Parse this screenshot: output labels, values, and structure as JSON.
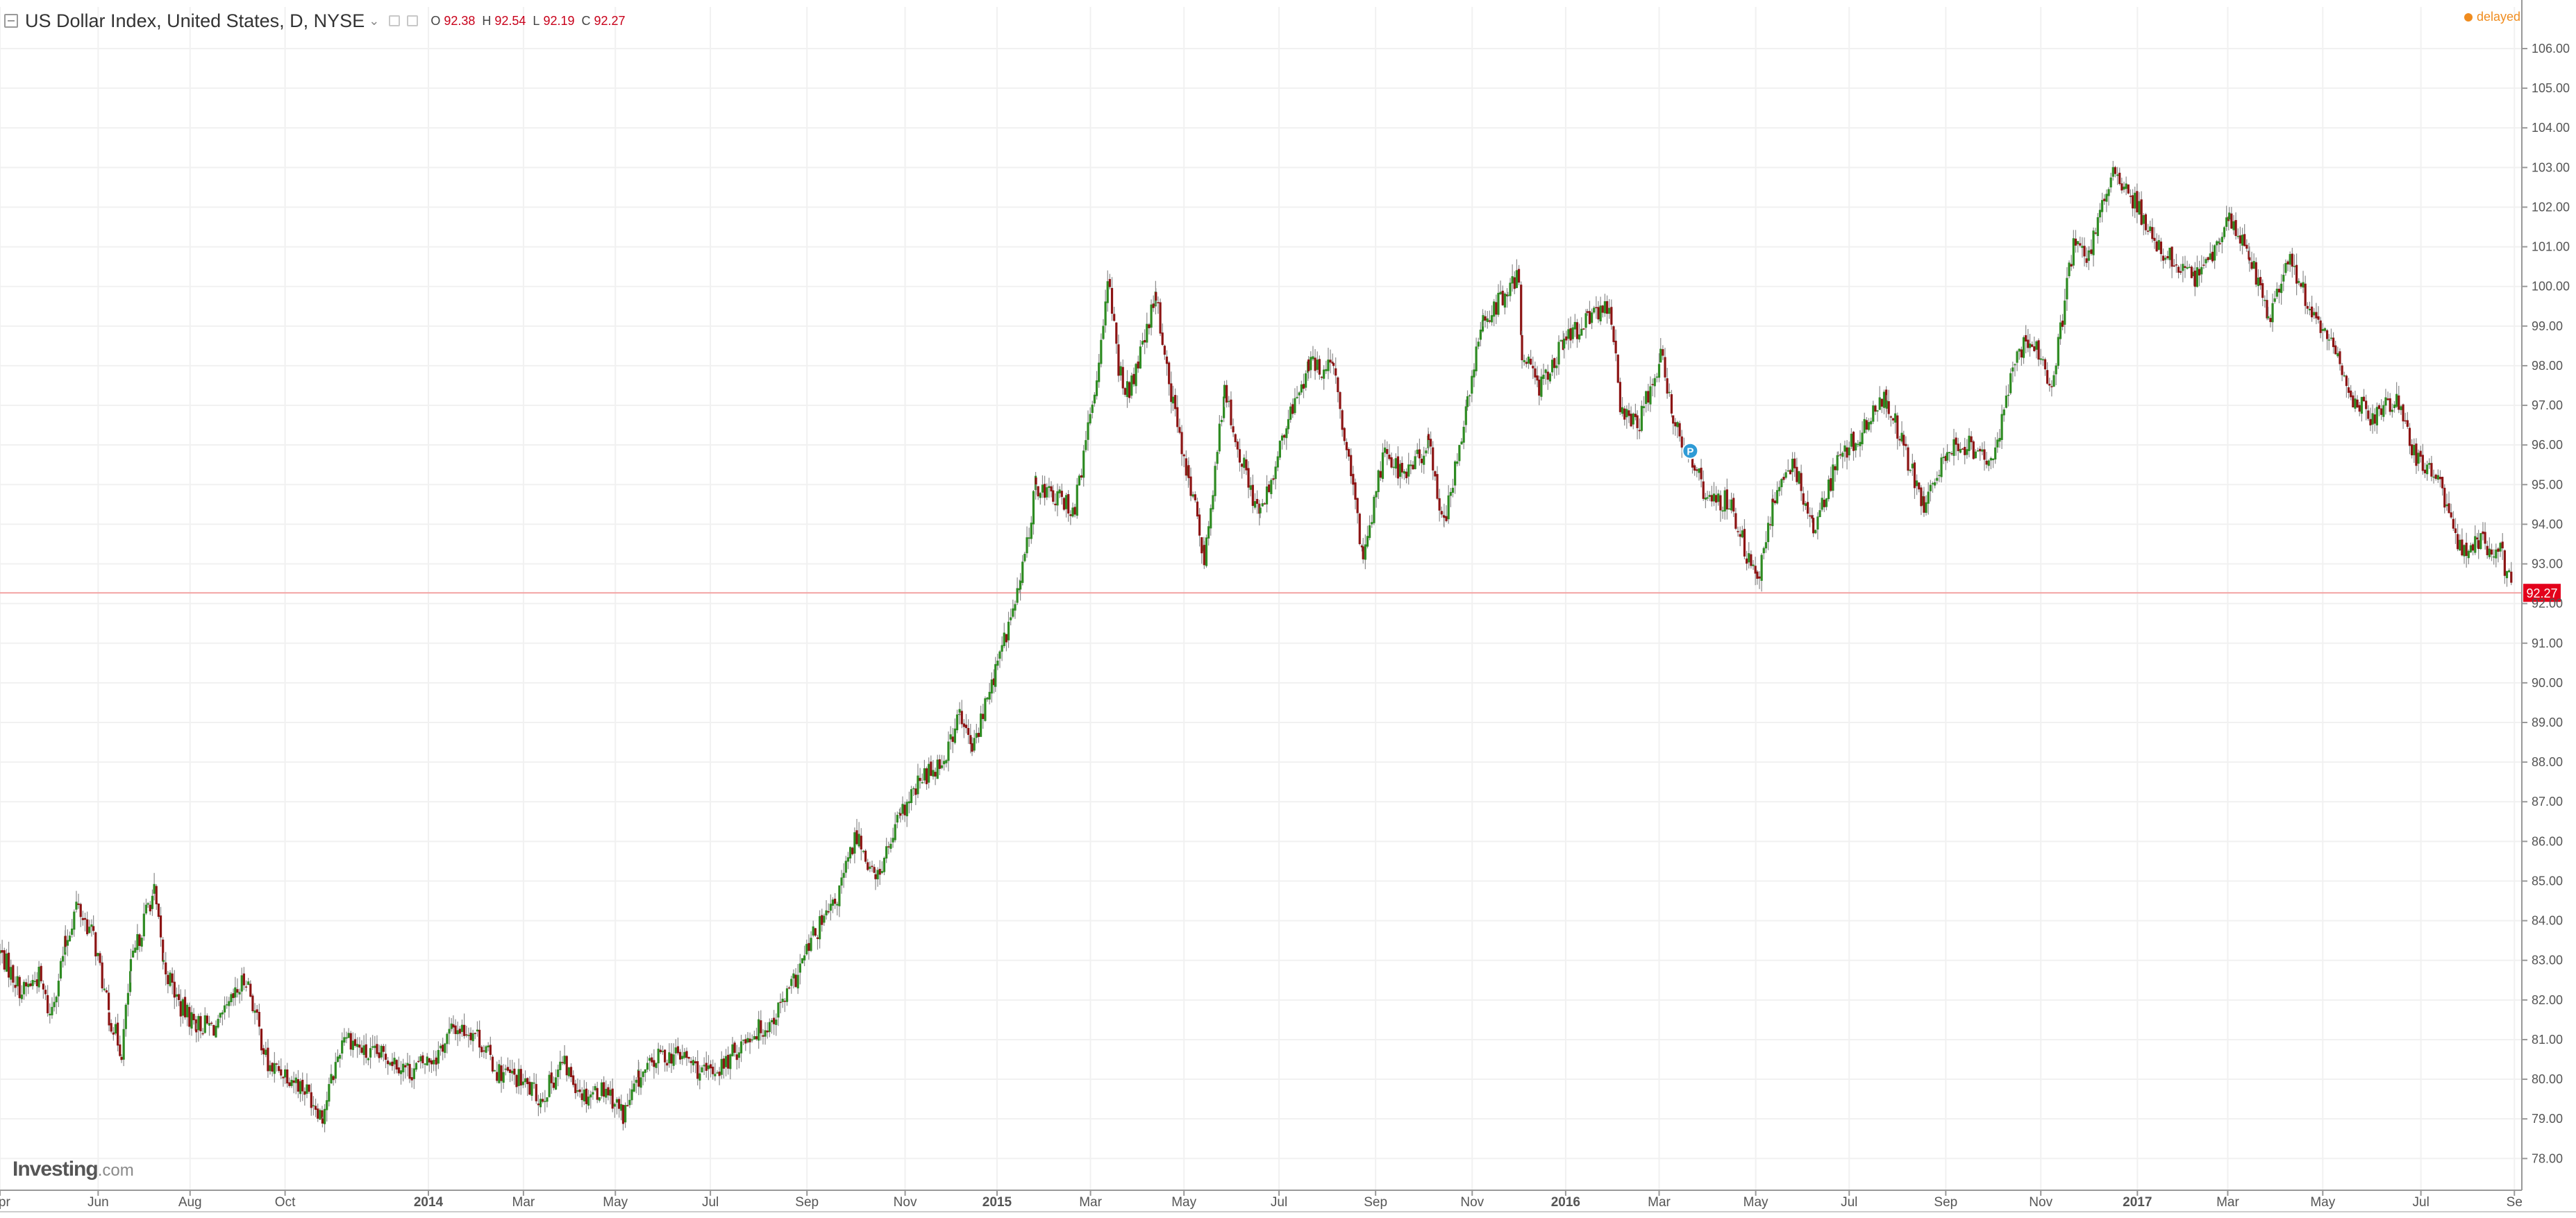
{
  "header": {
    "symbol_title": "US Dollar Index, United States, D, NYSE",
    "ohlc": [
      {
        "label": "O",
        "value": "92.38"
      },
      {
        "label": "H",
        "value": "92.54"
      },
      {
        "label": "L",
        "value": "92.19"
      },
      {
        "label": "C",
        "value": "92.27"
      }
    ],
    "status": "delayed"
  },
  "brand": {
    "name": "Investing",
    "suffix": ".com"
  },
  "colors": {
    "up": "#2e8b22",
    "down": "#8c1414",
    "wick": "#8a8a8a",
    "last_price": "#e3001b",
    "delayed": "#f08c1e",
    "grid": "#f1f1f1"
  },
  "chart_data": {
    "type": "candlestick",
    "y_axis": {
      "ylim": [
        77.2,
        106.7
      ],
      "ticks": [
        "78.00",
        "79.00",
        "80.00",
        "81.00",
        "82.00",
        "83.00",
        "84.00",
        "85.00",
        "86.00",
        "87.00",
        "88.00",
        "89.00",
        "90.00",
        "91.00",
        "92.00",
        "93.00",
        "94.00",
        "95.00",
        "96.00",
        "97.00",
        "98.00",
        "99.00",
        "100.00",
        "101.00",
        "102.00",
        "103.00",
        "104.00",
        "105.00",
        "106.00"
      ]
    },
    "x_axis": {
      "range": [
        "2013-04-01",
        "2017-09-04"
      ],
      "ticks": [
        {
          "label": "Apr",
          "date": "2013-04-01",
          "bold": false
        },
        {
          "label": "Jun",
          "date": "2013-06-03",
          "bold": false
        },
        {
          "label": "Aug",
          "date": "2013-08-01",
          "bold": false
        },
        {
          "label": "Oct",
          "date": "2013-10-01",
          "bold": false
        },
        {
          "label": "2014",
          "date": "2014-01-01",
          "bold": true
        },
        {
          "label": "Mar",
          "date": "2014-03-03",
          "bold": false
        },
        {
          "label": "May",
          "date": "2014-05-01",
          "bold": false
        },
        {
          "label": "Jul",
          "date": "2014-07-01",
          "bold": false
        },
        {
          "label": "Sep",
          "date": "2014-09-01",
          "bold": false
        },
        {
          "label": "Nov",
          "date": "2014-11-03",
          "bold": false
        },
        {
          "label": "2015",
          "date": "2015-01-01",
          "bold": true
        },
        {
          "label": "Mar",
          "date": "2015-03-02",
          "bold": false
        },
        {
          "label": "May",
          "date": "2015-05-01",
          "bold": false
        },
        {
          "label": "Jul",
          "date": "2015-07-01",
          "bold": false
        },
        {
          "label": "Sep",
          "date": "2015-09-01",
          "bold": false
        },
        {
          "label": "Nov",
          "date": "2015-11-02",
          "bold": false
        },
        {
          "label": "2016",
          "date": "2016-01-01",
          "bold": true
        },
        {
          "label": "Mar",
          "date": "2016-03-01",
          "bold": false
        },
        {
          "label": "May",
          "date": "2016-05-02",
          "bold": false
        },
        {
          "label": "Jul",
          "date": "2016-07-01",
          "bold": false
        },
        {
          "label": "Sep",
          "date": "2016-09-01",
          "bold": false
        },
        {
          "label": "Nov",
          "date": "2016-11-01",
          "bold": false
        },
        {
          "label": "2017",
          "date": "2017-01-02",
          "bold": true
        },
        {
          "label": "Mar",
          "date": "2017-03-01",
          "bold": false
        },
        {
          "label": "May",
          "date": "2017-05-01",
          "bold": false
        },
        {
          "label": "Jul",
          "date": "2017-07-03",
          "bold": false
        },
        {
          "label": "Se",
          "date": "2017-09-01",
          "bold": false
        }
      ]
    },
    "last_price": {
      "value": 92.27,
      "label": "92.27"
    },
    "marker": {
      "date": "2016-03-21",
      "value": 95.85,
      "label": "P"
    },
    "series": [
      {
        "date": "2013-04-01",
        "close": 83.2
      },
      {
        "date": "2013-04-15",
        "close": 82.2
      },
      {
        "date": "2013-04-26",
        "close": 82.6
      },
      {
        "date": "2013-05-03",
        "close": 81.6
      },
      {
        "date": "2013-05-13",
        "close": 83.4
      },
      {
        "date": "2013-05-20",
        "close": 84.4
      },
      {
        "date": "2013-05-31",
        "close": 83.6
      },
      {
        "date": "2013-06-10",
        "close": 81.6
      },
      {
        "date": "2013-06-18",
        "close": 80.7
      },
      {
        "date": "2013-06-24",
        "close": 82.8
      },
      {
        "date": "2013-07-05",
        "close": 84.4
      },
      {
        "date": "2013-07-09",
        "close": 84.7
      },
      {
        "date": "2013-07-15",
        "close": 82.9
      },
      {
        "date": "2013-07-26",
        "close": 81.8
      },
      {
        "date": "2013-08-05",
        "close": 81.4
      },
      {
        "date": "2013-08-19",
        "close": 81.3
      },
      {
        "date": "2013-08-30",
        "close": 82.1
      },
      {
        "date": "2013-09-06",
        "close": 82.6
      },
      {
        "date": "2013-09-20",
        "close": 80.3
      },
      {
        "date": "2013-10-01",
        "close": 80.2
      },
      {
        "date": "2013-10-15",
        "close": 79.7
      },
      {
        "date": "2013-10-25",
        "close": 79.1
      },
      {
        "date": "2013-11-08",
        "close": 81.2
      },
      {
        "date": "2013-11-22",
        "close": 80.6
      },
      {
        "date": "2013-12-06",
        "close": 80.6
      },
      {
        "date": "2013-12-20",
        "close": 80.2
      },
      {
        "date": "2014-01-06",
        "close": 80.6
      },
      {
        "date": "2014-01-17",
        "close": 81.3
      },
      {
        "date": "2014-01-31",
        "close": 81.2
      },
      {
        "date": "2014-02-14",
        "close": 80.2
      },
      {
        "date": "2014-02-28",
        "close": 80.0
      },
      {
        "date": "2014-03-14",
        "close": 79.5
      },
      {
        "date": "2014-03-28",
        "close": 80.4
      },
      {
        "date": "2014-04-11",
        "close": 79.6
      },
      {
        "date": "2014-04-25",
        "close": 79.8
      },
      {
        "date": "2014-05-06",
        "close": 79.1
      },
      {
        "date": "2014-05-16",
        "close": 80.0
      },
      {
        "date": "2014-05-30",
        "close": 80.6
      },
      {
        "date": "2014-06-13",
        "close": 80.6
      },
      {
        "date": "2014-06-27",
        "close": 80.1
      },
      {
        "date": "2014-07-11",
        "close": 80.4
      },
      {
        "date": "2014-07-25",
        "close": 81.1
      },
      {
        "date": "2014-08-08",
        "close": 81.4
      },
      {
        "date": "2014-08-22",
        "close": 82.3
      },
      {
        "date": "2014-09-05",
        "close": 83.6
      },
      {
        "date": "2014-09-19",
        "close": 84.4
      },
      {
        "date": "2014-10-03",
        "close": 86.2
      },
      {
        "date": "2014-10-15",
        "close": 85.0
      },
      {
        "date": "2014-10-31",
        "close": 86.6
      },
      {
        "date": "2014-11-14",
        "close": 87.6
      },
      {
        "date": "2014-11-28",
        "close": 88.1
      },
      {
        "date": "2014-12-08",
        "close": 89.2
      },
      {
        "date": "2014-12-16",
        "close": 88.3
      },
      {
        "date": "2014-12-31",
        "close": 90.3
      },
      {
        "date": "2015-01-16",
        "close": 92.5
      },
      {
        "date": "2015-01-26",
        "close": 95.0
      },
      {
        "date": "2015-02-06",
        "close": 94.7
      },
      {
        "date": "2015-02-20",
        "close": 94.4
      },
      {
        "date": "2015-03-06",
        "close": 97.7
      },
      {
        "date": "2015-03-13",
        "close": 100.3
      },
      {
        "date": "2015-03-20",
        "close": 97.9
      },
      {
        "date": "2015-03-27",
        "close": 97.3
      },
      {
        "date": "2015-04-13",
        "close": 99.7
      },
      {
        "date": "2015-04-24",
        "close": 97.0
      },
      {
        "date": "2015-05-04",
        "close": 95.2
      },
      {
        "date": "2015-05-14",
        "close": 93.2
      },
      {
        "date": "2015-05-27",
        "close": 97.3
      },
      {
        "date": "2015-06-10",
        "close": 95.2
      },
      {
        "date": "2015-06-19",
        "close": 94.2
      },
      {
        "date": "2015-07-07",
        "close": 96.6
      },
      {
        "date": "2015-07-20",
        "close": 98.0
      },
      {
        "date": "2015-08-05",
        "close": 97.9
      },
      {
        "date": "2015-08-24",
        "close": 93.2
      },
      {
        "date": "2015-09-07",
        "close": 96.0
      },
      {
        "date": "2015-09-18",
        "close": 95.2
      },
      {
        "date": "2015-10-05",
        "close": 96.0
      },
      {
        "date": "2015-10-15",
        "close": 94.0
      },
      {
        "date": "2015-10-30",
        "close": 97.0
      },
      {
        "date": "2015-11-09",
        "close": 99.2
      },
      {
        "date": "2015-11-25",
        "close": 99.8
      },
      {
        "date": "2015-12-02",
        "close": 100.3
      },
      {
        "date": "2015-12-04",
        "close": 98.4
      },
      {
        "date": "2015-12-15",
        "close": 97.5
      },
      {
        "date": "2015-12-31",
        "close": 98.6
      },
      {
        "date": "2016-01-15",
        "close": 99.1
      },
      {
        "date": "2016-01-29",
        "close": 99.6
      },
      {
        "date": "2016-02-05",
        "close": 97.0
      },
      {
        "date": "2016-02-16",
        "close": 96.4
      },
      {
        "date": "2016-03-02",
        "close": 98.3
      },
      {
        "date": "2016-03-10",
        "close": 96.6
      },
      {
        "date": "2016-03-21",
        "close": 95.8
      },
      {
        "date": "2016-04-01",
        "close": 94.6
      },
      {
        "date": "2016-04-15",
        "close": 94.6
      },
      {
        "date": "2016-05-03",
        "close": 92.4
      },
      {
        "date": "2016-05-13",
        "close": 94.6
      },
      {
        "date": "2016-05-27",
        "close": 95.5
      },
      {
        "date": "2016-06-08",
        "close": 93.9
      },
      {
        "date": "2016-06-24",
        "close": 95.6
      },
      {
        "date": "2016-07-08",
        "close": 96.3
      },
      {
        "date": "2016-07-25",
        "close": 97.2
      },
      {
        "date": "2016-08-05",
        "close": 95.9
      },
      {
        "date": "2016-08-18",
        "close": 94.4
      },
      {
        "date": "2016-09-02",
        "close": 95.9
      },
      {
        "date": "2016-09-16",
        "close": 96.0
      },
      {
        "date": "2016-09-30",
        "close": 95.4
      },
      {
        "date": "2016-10-14",
        "close": 98.0
      },
      {
        "date": "2016-10-25",
        "close": 98.8
      },
      {
        "date": "2016-11-08",
        "close": 97.4
      },
      {
        "date": "2016-11-22",
        "close": 101.1
      },
      {
        "date": "2016-12-02",
        "close": 100.8
      },
      {
        "date": "2016-12-16",
        "close": 102.9
      },
      {
        "date": "2016-12-30",
        "close": 102.2
      },
      {
        "date": "2017-01-13",
        "close": 101.2
      },
      {
        "date": "2017-01-27",
        "close": 100.5
      },
      {
        "date": "2017-02-08",
        "close": 100.2
      },
      {
        "date": "2017-02-24",
        "close": 101.1
      },
      {
        "date": "2017-03-02",
        "close": 101.7
      },
      {
        "date": "2017-03-15",
        "close": 100.9
      },
      {
        "date": "2017-03-27",
        "close": 99.2
      },
      {
        "date": "2017-04-10",
        "close": 100.8
      },
      {
        "date": "2017-04-24",
        "close": 99.2
      },
      {
        "date": "2017-05-05",
        "close": 98.7
      },
      {
        "date": "2017-05-19",
        "close": 97.2
      },
      {
        "date": "2017-06-02",
        "close": 96.7
      },
      {
        "date": "2017-06-16",
        "close": 97.2
      },
      {
        "date": "2017-06-30",
        "close": 95.6
      },
      {
        "date": "2017-07-14",
        "close": 95.1
      },
      {
        "date": "2017-07-28",
        "close": 93.4
      },
      {
        "date": "2017-08-09",
        "close": 93.6
      },
      {
        "date": "2017-08-23",
        "close": 93.3
      },
      {
        "date": "2017-08-31",
        "close": 92.3
      }
    ]
  }
}
